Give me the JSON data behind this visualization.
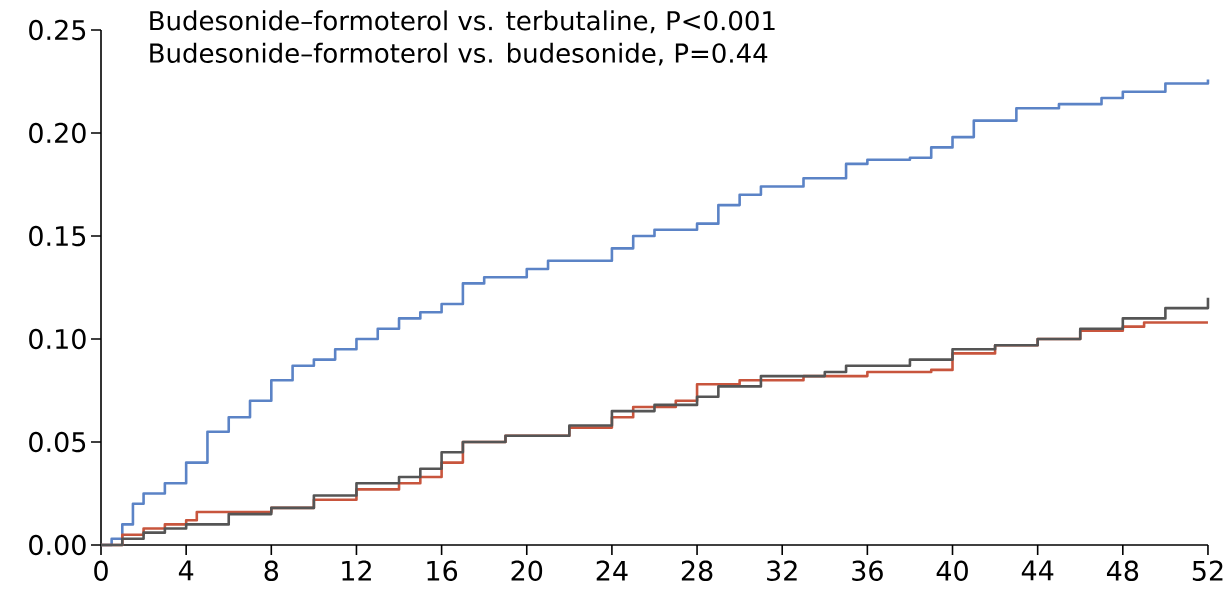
{
  "chart_data": {
    "type": "step",
    "annotations": [
      "Budesonide–formoterol vs. terbutaline, P<0.001",
      "Budesonide–formoterol vs. budesonide, P=0.44"
    ],
    "xlim": [
      0,
      52
    ],
    "xticks": [
      0,
      4,
      8,
      12,
      16,
      20,
      24,
      28,
      32,
      36,
      40,
      44,
      48,
      52
    ],
    "ylim": [
      0,
      0.25
    ],
    "yticks": [
      {
        "value": 0,
        "label": "0.00"
      },
      {
        "value": 0.05,
        "label": "0.05"
      },
      {
        "value": 0.1,
        "label": "0.10"
      },
      {
        "value": 0.15,
        "label": "0.15"
      },
      {
        "value": 0.2,
        "label": "0.20"
      },
      {
        "value": 0.25,
        "label": "0.25"
      }
    ],
    "series": [
      {
        "color": "#5b83c6",
        "x": [
          0,
          0.5,
          1,
          1.5,
          2,
          3,
          4,
          5,
          6,
          7,
          8,
          9,
          10,
          11,
          12,
          13,
          14,
          15,
          16,
          17,
          18,
          20,
          21,
          24,
          25,
          26,
          28,
          29,
          30,
          31,
          33,
          35,
          36,
          38,
          39,
          40,
          41,
          43,
          45,
          47,
          48,
          50,
          52
        ],
        "values": [
          0,
          0.003,
          0.01,
          0.02,
          0.025,
          0.03,
          0.04,
          0.055,
          0.062,
          0.07,
          0.08,
          0.087,
          0.09,
          0.095,
          0.1,
          0.105,
          0.11,
          0.113,
          0.117,
          0.127,
          0.13,
          0.134,
          0.138,
          0.144,
          0.15,
          0.153,
          0.156,
          0.165,
          0.17,
          0.174,
          0.178,
          0.185,
          0.187,
          0.188,
          0.193,
          0.198,
          0.206,
          0.212,
          0.214,
          0.217,
          0.22,
          0.224,
          0.226
        ]
      },
      {
        "color": "#c8553d",
        "x": [
          0,
          1,
          2,
          3,
          4,
          4.5,
          7,
          8,
          10,
          12,
          14,
          15,
          16,
          17,
          19,
          22,
          24,
          25,
          27,
          28,
          30,
          33,
          36,
          39,
          40,
          42,
          44,
          46,
          48,
          49,
          52
        ],
        "values": [
          0,
          0.005,
          0.008,
          0.01,
          0.012,
          0.016,
          0.016,
          0.018,
          0.022,
          0.027,
          0.03,
          0.033,
          0.04,
          0.05,
          0.053,
          0.057,
          0.062,
          0.067,
          0.07,
          0.078,
          0.08,
          0.082,
          0.084,
          0.085,
          0.093,
          0.097,
          0.1,
          0.104,
          0.106,
          0.108,
          0.108
        ]
      },
      {
        "color": "#555555",
        "x": [
          0,
          1,
          2,
          3,
          4,
          6,
          8,
          10,
          12,
          14,
          15,
          16,
          17,
          19,
          22,
          24,
          26,
          28,
          29,
          31,
          34,
          35,
          38,
          40,
          42,
          44,
          46,
          48,
          50,
          52
        ],
        "values": [
          0,
          0.003,
          0.006,
          0.008,
          0.01,
          0.015,
          0.018,
          0.024,
          0.03,
          0.033,
          0.037,
          0.045,
          0.05,
          0.053,
          0.058,
          0.065,
          0.068,
          0.072,
          0.077,
          0.082,
          0.084,
          0.087,
          0.09,
          0.095,
          0.097,
          0.1,
          0.105,
          0.11,
          0.115,
          0.12
        ]
      }
    ]
  }
}
